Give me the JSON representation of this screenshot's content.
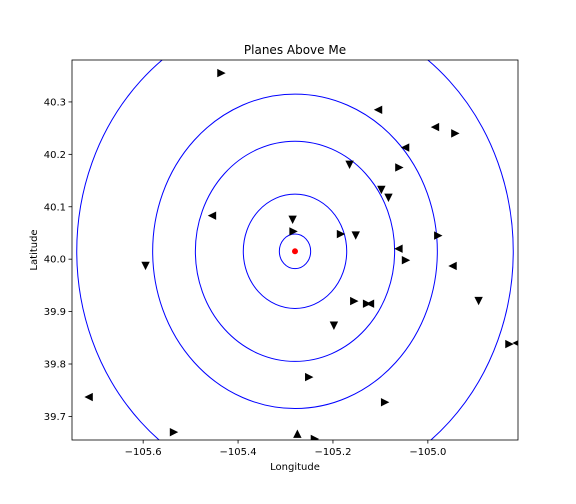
{
  "chart_data": {
    "type": "scatter",
    "title": "Planes Above Me",
    "xlabel": "Longitude",
    "ylabel": "Latitude",
    "xlim": [
      -105.75,
      -104.81
    ],
    "ylim": [
      39.655,
      40.38
    ],
    "xticks": [
      -105.6,
      -105.4,
      -105.2,
      -105.0
    ],
    "xtick_labels": [
      "−105.6",
      "−105.4",
      "−105.2",
      "−105.0"
    ],
    "yticks": [
      39.7,
      39.8,
      39.9,
      40.0,
      40.1,
      40.2,
      40.3
    ],
    "ytick_labels": [
      "39.7",
      "39.8",
      "39.9",
      "40.0",
      "40.1",
      "40.2",
      "40.3"
    ],
    "grid": false,
    "center": {
      "x": -105.28,
      "y": 40.015,
      "color": "#ff0000"
    },
    "ring_radii": [
      0.033,
      0.109,
      0.21,
      0.3,
      0.46
    ],
    "ring_color": "#0000ff",
    "marker_color": "#000000",
    "planes": [
      {
        "x": -105.435,
        "y": 40.355,
        "dir": "right"
      },
      {
        "x": -105.105,
        "y": 40.285,
        "dir": "left"
      },
      {
        "x": -104.985,
        "y": 40.252,
        "dir": "left"
      },
      {
        "x": -104.942,
        "y": 40.24,
        "dir": "right"
      },
      {
        "x": -105.048,
        "y": 40.213,
        "dir": "left"
      },
      {
        "x": -105.165,
        "y": 40.18,
        "dir": "down"
      },
      {
        "x": -105.06,
        "y": 40.175,
        "dir": "right"
      },
      {
        "x": -105.098,
        "y": 40.132,
        "dir": "down"
      },
      {
        "x": -105.083,
        "y": 40.117,
        "dir": "down"
      },
      {
        "x": -105.455,
        "y": 40.083,
        "dir": "left"
      },
      {
        "x": -105.285,
        "y": 40.075,
        "dir": "down"
      },
      {
        "x": -105.283,
        "y": 40.053,
        "dir": "right"
      },
      {
        "x": -105.183,
        "y": 40.048,
        "dir": "right"
      },
      {
        "x": -105.152,
        "y": 40.045,
        "dir": "down"
      },
      {
        "x": -104.978,
        "y": 40.045,
        "dir": "right"
      },
      {
        "x": -105.062,
        "y": 40.02,
        "dir": "left"
      },
      {
        "x": -105.046,
        "y": 39.998,
        "dir": "right"
      },
      {
        "x": -105.595,
        "y": 39.987,
        "dir": "down"
      },
      {
        "x": -104.948,
        "y": 39.987,
        "dir": "left"
      },
      {
        "x": -104.893,
        "y": 39.92,
        "dir": "down"
      },
      {
        "x": -105.155,
        "y": 39.92,
        "dir": "right"
      },
      {
        "x": -105.128,
        "y": 39.915,
        "dir": "right"
      },
      {
        "x": -105.122,
        "y": 39.915,
        "dir": "left"
      },
      {
        "x": -105.198,
        "y": 39.873,
        "dir": "down"
      },
      {
        "x": -104.828,
        "y": 39.838,
        "dir": "right"
      },
      {
        "x": -104.813,
        "y": 39.84,
        "dir": "left"
      },
      {
        "x": -105.25,
        "y": 39.775,
        "dir": "right"
      },
      {
        "x": -105.715,
        "y": 39.737,
        "dir": "left"
      },
      {
        "x": -105.09,
        "y": 39.727,
        "dir": "right"
      },
      {
        "x": -105.535,
        "y": 39.67,
        "dir": "right"
      },
      {
        "x": -105.275,
        "y": 39.667,
        "dir": "up"
      },
      {
        "x": -105.238,
        "y": 39.657,
        "dir": "right"
      }
    ]
  }
}
